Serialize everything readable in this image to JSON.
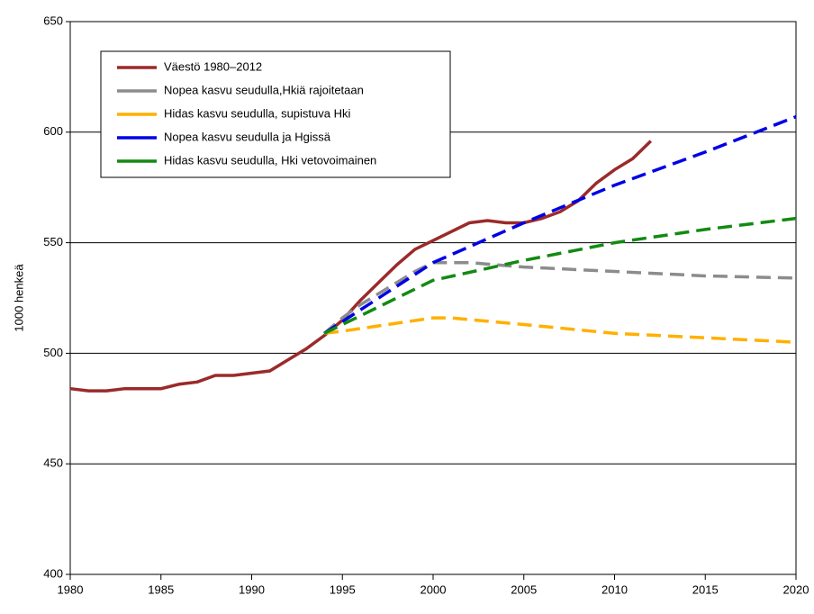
{
  "chart_data": {
    "type": "line",
    "y_label": "1000 henkeä",
    "xlim": [
      1980,
      2020
    ],
    "xticks": [
      1980,
      1985,
      1990,
      1995,
      2000,
      2005,
      2010,
      2015,
      2020
    ],
    "ylim": [
      400,
      650
    ],
    "yticks": [
      400,
      450,
      500,
      550,
      600,
      650
    ],
    "grid": true,
    "legend": "upper left",
    "series": [
      {
        "name": "Väestö 1980–2012",
        "color": "#9b2a2a",
        "dashed": false,
        "x": [
          1980,
          1981,
          1982,
          1983,
          1984,
          1985,
          1986,
          1987,
          1988,
          1989,
          1990,
          1991,
          1992,
          1993,
          1994,
          1995,
          1996,
          1997,
          1998,
          1999,
          2000,
          2001,
          2002,
          2003,
          2004,
          2005,
          2006,
          2007,
          2008,
          2009,
          2010,
          2011,
          2012
        ],
        "values": [
          484,
          483,
          483,
          484,
          484,
          484,
          486,
          487,
          490,
          490,
          491,
          492,
          497,
          502,
          508,
          515,
          524,
          532,
          540,
          547,
          551,
          555,
          559,
          560,
          559,
          559,
          561,
          564,
          569,
          577,
          583,
          588,
          596
        ]
      },
      {
        "name": "Nopea kasvu seudulla,Hkiä rajoitetaan",
        "color": "#8c8c8c",
        "dashed": true,
        "x": [
          1994,
          1995,
          1996,
          1997,
          1998,
          1999,
          2000,
          2002,
          2005,
          2010,
          2015,
          2020
        ],
        "values": [
          509,
          516,
          522,
          527,
          532,
          537,
          541,
          541,
          539,
          537,
          535,
          534
        ]
      },
      {
        "name": "Hidas kasvu seudulla, supistuva Hki",
        "color": "#ffb000",
        "dashed": true,
        "x": [
          1994,
          1995,
          2000,
          2001,
          2005,
          2010,
          2015,
          2020
        ],
        "values": [
          509,
          510,
          516,
          516,
          513,
          509,
          507,
          505
        ]
      },
      {
        "name": "Nopea kasvu seudulla ja Hgissä",
        "color": "#0000e6",
        "dashed": true,
        "x": [
          1994,
          2000,
          2005,
          2010,
          2015,
          2020
        ],
        "values": [
          509,
          541,
          559,
          576,
          591,
          607
        ]
      },
      {
        "name": "Hidas kasvu seudulla, Hki vetovoimainen",
        "color": "#138a13",
        "dashed": true,
        "x": [
          1994,
          2000,
          2005,
          2010,
          2015,
          2020
        ],
        "values": [
          509,
          533,
          542,
          550,
          556,
          561
        ]
      }
    ]
  }
}
